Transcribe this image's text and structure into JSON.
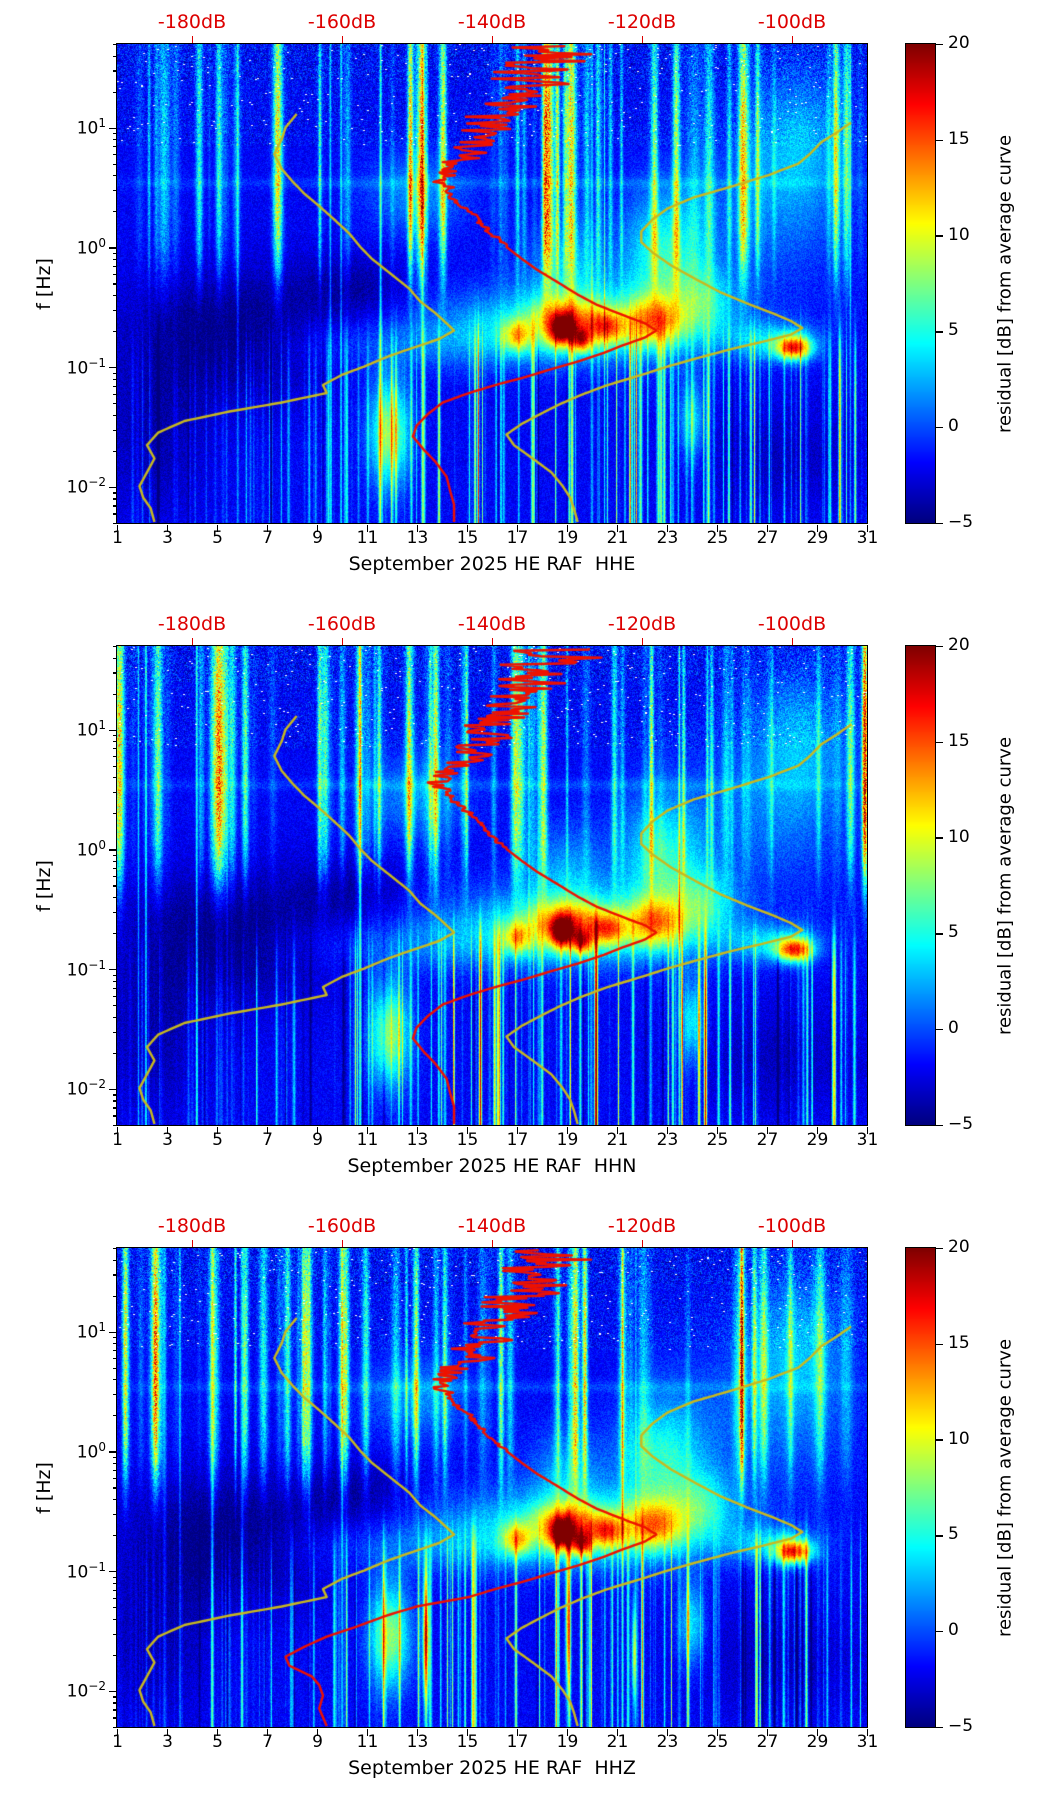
{
  "chart_data": {
    "type": "heatmap",
    "subtype": "spectrogram-with-psd-curves",
    "panels": [
      {
        "channel": "HHE",
        "xlabel": "September 2025 HE RAF  HHE"
      },
      {
        "channel": "HHN",
        "xlabel": "September 2025 HE RAF  HHN"
      },
      {
        "channel": "HHZ",
        "xlabel": "September 2025 HE RAF  HHZ"
      }
    ],
    "x_axis": {
      "ticks": [
        "1",
        "3",
        "5",
        "7",
        "9",
        "11",
        "13",
        "15",
        "17",
        "19",
        "21",
        "23",
        "25",
        "27",
        "29",
        "31"
      ],
      "tick_days": [
        1,
        3,
        5,
        7,
        9,
        11,
        13,
        15,
        17,
        19,
        21,
        23,
        25,
        27,
        29,
        31
      ],
      "range_days": [
        1,
        31
      ]
    },
    "top_axis": {
      "ticks": [
        "-180dB",
        "-160dB",
        "-140dB",
        "-120dB",
        "-100dB"
      ],
      "tick_db_values": [
        -180,
        -160,
        -140,
        -120,
        -100
      ],
      "db_range": [
        -190,
        -90
      ],
      "color": "#dd0000"
    },
    "y_axis": {
      "label": "f [Hz]",
      "scale": "log",
      "range_hz": [
        0.005,
        50
      ],
      "tick_exponents": [
        "1",
        "0",
        "−1",
        "−2"
      ],
      "tick_exponent_values": [
        1,
        0,
        -1,
        -2
      ]
    },
    "colorbar": {
      "label": "residual [dB] from average curve",
      "ticks": [
        "20",
        "15",
        "10",
        "5",
        "0",
        "−5"
      ],
      "tick_values": [
        20,
        15,
        10,
        5,
        0,
        -5
      ],
      "range": [
        -5,
        20
      ],
      "colormap": "jet"
    },
    "curves": {
      "red_average": {
        "color": "#ee1100",
        "points_f_db": [
          [
            48,
            -131
          ],
          [
            40,
            -131
          ],
          [
            33,
            -134
          ],
          [
            27,
            -136
          ],
          [
            22,
            -134
          ],
          [
            18,
            -138
          ],
          [
            15,
            -137
          ],
          [
            12,
            -140
          ],
          [
            10,
            -141
          ],
          [
            8.5,
            -140
          ],
          [
            7,
            -143
          ],
          [
            6,
            -142
          ],
          [
            5,
            -145
          ],
          [
            4.2,
            -146
          ],
          [
            3.6,
            -147
          ],
          [
            3,
            -146
          ],
          [
            2.5,
            -145
          ],
          [
            2,
            -143
          ],
          [
            1.6,
            -141.5
          ],
          [
            1.3,
            -140
          ],
          [
            1,
            -138
          ],
          [
            0.8,
            -136
          ],
          [
            0.65,
            -134
          ],
          [
            0.5,
            -131
          ],
          [
            0.4,
            -128.5
          ],
          [
            0.33,
            -126
          ],
          [
            0.27,
            -122.5
          ],
          [
            0.23,
            -119.5
          ],
          [
            0.2,
            -118
          ],
          [
            0.175,
            -119.5
          ],
          [
            0.15,
            -122.5
          ],
          [
            0.13,
            -125
          ],
          [
            0.11,
            -128.5
          ],
          [
            0.095,
            -132
          ],
          [
            0.08,
            -136
          ],
          [
            0.07,
            -139.5
          ],
          [
            0.06,
            -143
          ],
          [
            0.05,
            -146.5
          ],
          [
            0.04,
            -148.5
          ],
          [
            0.032,
            -150
          ],
          [
            0.026,
            -150.5
          ],
          [
            0.02,
            -149
          ],
          [
            0.016,
            -147.5
          ],
          [
            0.012,
            -146
          ],
          [
            0.009,
            -145.5
          ],
          [
            0.007,
            -145
          ],
          [
            0.005,
            -145
          ]
        ],
        "tail_hhz_points_f_db": [
          [
            0.05,
            -150
          ],
          [
            0.042,
            -154
          ],
          [
            0.034,
            -158
          ],
          [
            0.028,
            -162
          ],
          [
            0.023,
            -165
          ],
          [
            0.019,
            -167.5
          ],
          [
            0.016,
            -167
          ],
          [
            0.013,
            -164
          ],
          [
            0.011,
            -163
          ],
          [
            0.009,
            -162.5
          ],
          [
            0.007,
            -163
          ],
          [
            0.005,
            -162
          ]
        ]
      },
      "yellow_low_percentile": {
        "color": "#c9b91e",
        "points_f_db": [
          [
            13,
            -166
          ],
          [
            10,
            -167.5
          ],
          [
            8,
            -168
          ],
          [
            6,
            -169
          ],
          [
            4.5,
            -168
          ],
          [
            3.5,
            -166.5
          ],
          [
            2.8,
            -165
          ],
          [
            2.2,
            -163
          ],
          [
            1.7,
            -161
          ],
          [
            1.3,
            -159
          ],
          [
            1,
            -157.5
          ],
          [
            0.8,
            -156
          ],
          [
            0.6,
            -153.5
          ],
          [
            0.45,
            -151
          ],
          [
            0.35,
            -149.5
          ],
          [
            0.28,
            -147.5
          ],
          [
            0.23,
            -146
          ],
          [
            0.2,
            -145
          ],
          [
            0.17,
            -147
          ],
          [
            0.14,
            -151
          ],
          [
            0.12,
            -154
          ],
          [
            0.1,
            -157
          ],
          [
            0.085,
            -160
          ],
          [
            0.07,
            -162.5
          ],
          [
            0.06,
            -162
          ],
          [
            0.05,
            -168
          ],
          [
            0.042,
            -175
          ],
          [
            0.035,
            -181
          ],
          [
            0.028,
            -184.5
          ],
          [
            0.022,
            -186
          ],
          [
            0.017,
            -185
          ],
          [
            0.013,
            -186
          ],
          [
            0.01,
            -187
          ],
          [
            0.008,
            -186.5
          ],
          [
            0.0065,
            -185.5
          ],
          [
            0.005,
            -185
          ]
        ]
      },
      "yellow_high_percentile": {
        "color": "#c9b91e",
        "points_f_db": [
          [
            11,
            -92
          ],
          [
            9,
            -94
          ],
          [
            7.5,
            -96
          ],
          [
            6,
            -97.5
          ],
          [
            5,
            -99
          ],
          [
            4,
            -103
          ],
          [
            3.2,
            -108
          ],
          [
            2.6,
            -113
          ],
          [
            2.1,
            -116.5
          ],
          [
            1.7,
            -118.5
          ],
          [
            1.35,
            -120
          ],
          [
            1.1,
            -120
          ],
          [
            0.9,
            -118.5
          ],
          [
            0.7,
            -116
          ],
          [
            0.55,
            -113
          ],
          [
            0.42,
            -109.5
          ],
          [
            0.34,
            -106
          ],
          [
            0.28,
            -102.5
          ],
          [
            0.24,
            -100
          ],
          [
            0.21,
            -98.5
          ],
          [
            0.185,
            -100
          ],
          [
            0.16,
            -104
          ],
          [
            0.14,
            -108
          ],
          [
            0.12,
            -112
          ],
          [
            0.1,
            -116.5
          ],
          [
            0.085,
            -120
          ],
          [
            0.07,
            -124.5
          ],
          [
            0.058,
            -128
          ],
          [
            0.048,
            -131
          ],
          [
            0.04,
            -133.5
          ],
          [
            0.033,
            -136
          ],
          [
            0.027,
            -138
          ],
          [
            0.022,
            -137
          ],
          [
            0.017,
            -134.5
          ],
          [
            0.013,
            -132
          ],
          [
            0.01,
            -130.5
          ],
          [
            0.008,
            -129.5
          ],
          [
            0.0065,
            -129
          ],
          [
            0.005,
            -128.5
          ]
        ]
      }
    },
    "heatmap_features": {
      "base_residual_db": -2.3,
      "blobs": [
        {
          "d": 19.3,
          "lf": -0.62,
          "sd": 5.0,
          "sf": 0.3,
          "a": 6.5
        },
        {
          "d": 15.0,
          "lf": -0.8,
          "sd": 7.0,
          "sf": 0.22,
          "a": 2.5
        },
        {
          "d": 18.8,
          "lf": -0.7,
          "sd": 0.5,
          "sf": 0.13,
          "a": 13
        },
        {
          "d": 19.6,
          "lf": -0.78,
          "sd": 0.35,
          "sf": 0.1,
          "a": 11
        },
        {
          "d": 19.0,
          "lf": -0.6,
          "sd": 1.3,
          "sf": 0.17,
          "a": 8
        },
        {
          "d": 17.0,
          "lf": -0.74,
          "sd": 0.55,
          "sf": 0.13,
          "a": 8
        },
        {
          "d": 20.6,
          "lf": -0.67,
          "sd": 0.7,
          "sf": 0.14,
          "a": 9
        },
        {
          "d": 22.5,
          "lf": -0.62,
          "sd": 1.1,
          "sf": 0.2,
          "a": 9
        },
        {
          "d": 28.1,
          "lf": -0.84,
          "sd": 0.7,
          "sf": 0.1,
          "a": 15
        },
        {
          "d": 27.2,
          "lf": -0.78,
          "sd": 1.8,
          "sf": 0.16,
          "a": 5
        },
        {
          "d": 22.8,
          "lf": -0.1,
          "sd": 1.6,
          "sf": 0.55,
          "a": 7
        },
        {
          "d": 24.5,
          "lf": -0.45,
          "sd": 1.2,
          "sf": 0.3,
          "a": 5
        },
        {
          "d": 11.9,
          "lf": -1.55,
          "sd": 0.8,
          "sf": 0.45,
          "a": 10
        },
        {
          "d": 13.0,
          "lf": 0.45,
          "sd": 2.0,
          "sf": 0.35,
          "a": 3.5
        },
        {
          "d": 19.0,
          "lf": -0.2,
          "sd": 1.5,
          "sf": 0.4,
          "a": 4
        },
        {
          "d": 28.3,
          "lf": 0.9,
          "sd": 1.8,
          "sf": 0.6,
          "a": 4
        },
        {
          "d": 26.8,
          "lf": 0.3,
          "sd": 3.5,
          "sf": 0.7,
          "a": 2.5
        },
        {
          "d": 16.0,
          "lf": 0.54,
          "sd": 20.0,
          "sf": 0.05,
          "a": 1.5
        },
        {
          "d": 24.0,
          "lf": -1.45,
          "sd": 0.5,
          "sf": 0.35,
          "a": 6
        }
      ],
      "dark_patches": [
        {
          "d": 5.5,
          "lf": -0.72,
          "sd": 4.0,
          "sf": 0.55,
          "a": 3.2
        },
        {
          "d": 2.5,
          "lf": -1.6,
          "sd": 2.2,
          "sf": 0.7,
          "a": 1.8
        },
        {
          "d": 27.5,
          "lf": -1.75,
          "sd": 3.5,
          "sf": 0.45,
          "a": 1.5
        },
        {
          "d": 10.5,
          "lf": -0.35,
          "sd": 2.2,
          "sf": 0.3,
          "a": 2.0
        }
      ],
      "panel_extra_blobs": [
        [],
        [],
        [
          {
            "d": 13.35,
            "lf": -1.55,
            "sd": 0.12,
            "sf": 0.55,
            "a": 16
          },
          {
            "d": 19.05,
            "lf": -1.45,
            "sd": 0.1,
            "sf": 0.65,
            "a": 14
          },
          {
            "d": 21.7,
            "lf": -1.7,
            "sd": 0.09,
            "sf": 0.45,
            "a": 11
          }
        ]
      ]
    }
  }
}
